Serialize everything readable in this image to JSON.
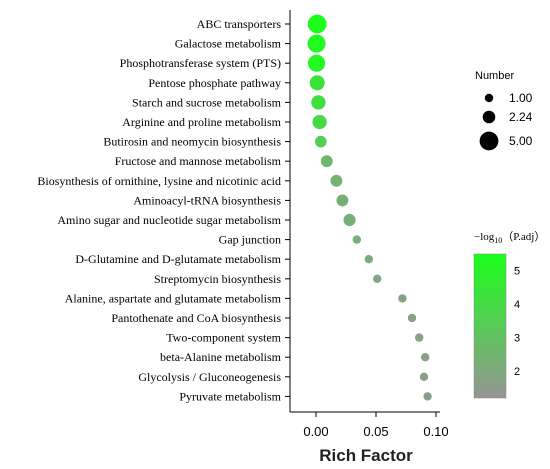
{
  "chart_data": {
    "type": "scatter",
    "xlabel": "Rich Factor",
    "xlim": [
      -0.02,
      0.1
    ],
    "xticks": [
      "0.00",
      "0.05",
      "0.10"
    ],
    "xtick_values": [
      0.0,
      0.05,
      0.1
    ],
    "categories": [
      "ABC transporters",
      "Galactose metabolism",
      "Phosphotransferase system (PTS)",
      "Pentose phosphate pathway",
      "Starch and sucrose metabolism",
      "Arginine and proline metabolism",
      "Butirosin and neomycin biosynthesis",
      "Fructose and mannose metabolism",
      "Biosynthesis of  ornithine, lysine and nicotinic acid",
      "Aminoacyl-tRNA biosynthesis",
      "Amino sugar and nucleotide sugar metabolism",
      "Gap junction",
      "D-Glutamine and D-glutamate metabolism",
      "Streptomycin biosynthesis",
      "Alanine, aspartate and glutamate metabolism",
      "Pantothenate and CoA biosynthesis",
      "Two-component system",
      "beta-Alanine metabolism",
      "Glycolysis / Gluconeogenesis",
      "Pyruvate metabolism"
    ],
    "points": [
      {
        "x": 0.001,
        "number": 5.0,
        "color_value": 5.4
      },
      {
        "x": 0.0005,
        "number": 4.6,
        "color_value": 5.3
      },
      {
        "x": 0.0005,
        "number": 4.2,
        "color_value": 5.2
      },
      {
        "x": 0.001,
        "number": 3.2,
        "color_value": 4.4
      },
      {
        "x": 0.002,
        "number": 2.9,
        "color_value": 4.2
      },
      {
        "x": 0.003,
        "number": 2.9,
        "color_value": 4.0
      },
      {
        "x": 0.004,
        "number": 1.9,
        "color_value": 3.5
      },
      {
        "x": 0.009,
        "number": 2.0,
        "color_value": 2.6
      },
      {
        "x": 0.017,
        "number": 2.0,
        "color_value": 2.4
      },
      {
        "x": 0.022,
        "number": 2.0,
        "color_value": 2.3
      },
      {
        "x": 0.028,
        "number": 2.1,
        "color_value": 2.2
      },
      {
        "x": 0.034,
        "number": 1.0,
        "color_value": 2.2
      },
      {
        "x": 0.044,
        "number": 1.0,
        "color_value": 2.0
      },
      {
        "x": 0.051,
        "number": 1.0,
        "color_value": 1.9
      },
      {
        "x": 0.072,
        "number": 1.0,
        "color_value": 1.8
      },
      {
        "x": 0.08,
        "number": 1.0,
        "color_value": 1.7
      },
      {
        "x": 0.086,
        "number": 1.0,
        "color_value": 1.6
      },
      {
        "x": 0.091,
        "number": 1.0,
        "color_value": 1.6
      },
      {
        "x": 0.09,
        "number": 1.0,
        "color_value": 1.6
      },
      {
        "x": 0.093,
        "number": 1.0,
        "color_value": 1.5
      }
    ],
    "size_legend": {
      "title": "Number",
      "entries": [
        {
          "label": "1.00",
          "value": 1.0
        },
        {
          "label": "2.24",
          "value": 2.24
        },
        {
          "label": "5.00",
          "value": 5.0
        }
      ]
    },
    "color_legend": {
      "title_prefix": "−log",
      "title_sub": "10",
      "title_suffix": "（P.adj）",
      "range": [
        1.2,
        5.5
      ],
      "ticks": [
        "5",
        "4",
        "3",
        "2"
      ],
      "tick_values": [
        5,
        4,
        3,
        2
      ],
      "color_low": "#959595",
      "color_high": "#1aff1a"
    },
    "grid": false,
    "legend_position": "right"
  }
}
